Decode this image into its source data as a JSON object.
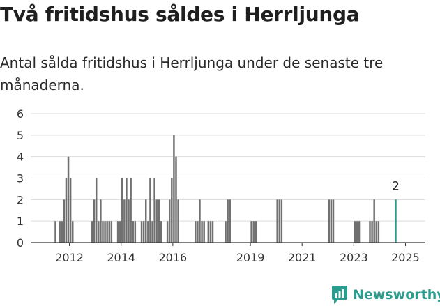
{
  "title": "Två fritidshus såldes i Herrljunga",
  "subtitle": "Antal sålda fritidshus i Herrljunga under de senaste tre månaderna.",
  "brand": {
    "name": "Newsworthy",
    "icon": "newsworthy-logo-icon",
    "color": "#2a9d8f"
  },
  "colors": {
    "bar": "#707070",
    "highlight": "#2a9d8f",
    "axis": "#333333",
    "grid": "#dddddd",
    "text": "#333333"
  },
  "chart_data": {
    "type": "bar",
    "title": "Två fritidshus såldes i Herrljunga",
    "subtitle": "Antal sålda fritidshus i Herrljunga under de senaste tre månaderna.",
    "xlabel": "",
    "ylabel": "",
    "ylim": [
      0,
      6
    ],
    "yticks": [
      0,
      1,
      2,
      3,
      4,
      5,
      6
    ],
    "xlim": [
      "2011-01",
      "2025-12"
    ],
    "xticks": [
      "2012",
      "2014",
      "2016",
      "2019",
      "2021",
      "2023",
      "2025"
    ],
    "grid": true,
    "legend": "none",
    "highlight": {
      "x": "2025-02",
      "value": 2,
      "label": "2"
    },
    "x": [
      "2011-12",
      "2012-02",
      "2012-03",
      "2012-04",
      "2012-05",
      "2012-06",
      "2012-07",
      "2012-08",
      "2013-05",
      "2013-06",
      "2013-07",
      "2013-08",
      "2013-09",
      "2013-10",
      "2013-11",
      "2013-12",
      "2014-01",
      "2014-02",
      "2014-05",
      "2014-06",
      "2014-07",
      "2014-08",
      "2014-09",
      "2014-10",
      "2014-11",
      "2014-12",
      "2015-01",
      "2015-04",
      "2015-05",
      "2015-06",
      "2015-07",
      "2015-08",
      "2015-09",
      "2015-10",
      "2015-11",
      "2015-12",
      "2016-01",
      "2016-04",
      "2016-05",
      "2016-06",
      "2016-07",
      "2016-08",
      "2016-09",
      "2017-05",
      "2017-06",
      "2017-07",
      "2017-08",
      "2017-09",
      "2017-11",
      "2017-12",
      "2018-01",
      "2018-07",
      "2018-08",
      "2018-09",
      "2019-07",
      "2019-08",
      "2019-09",
      "2020-07",
      "2020-08",
      "2020-09",
      "2022-07",
      "2022-08",
      "2022-09",
      "2023-07",
      "2023-08",
      "2023-09",
      "2024-02",
      "2024-03",
      "2024-04",
      "2024-05",
      "2024-06",
      "2025-02"
    ],
    "values": [
      1,
      1,
      1,
      2,
      3,
      4,
      3,
      1,
      1,
      2,
      3,
      1,
      2,
      1,
      1,
      1,
      1,
      1,
      1,
      1,
      3,
      2,
      3,
      2,
      3,
      1,
      1,
      1,
      1,
      2,
      1,
      3,
      1,
      3,
      2,
      2,
      1,
      1,
      2,
      3,
      5,
      4,
      2,
      1,
      1,
      2,
      1,
      1,
      1,
      1,
      1,
      1,
      2,
      2,
      1,
      1,
      1,
      2,
      2,
      2,
      2,
      2,
      2,
      1,
      1,
      1,
      1,
      1,
      2,
      1,
      1,
      2
    ]
  }
}
